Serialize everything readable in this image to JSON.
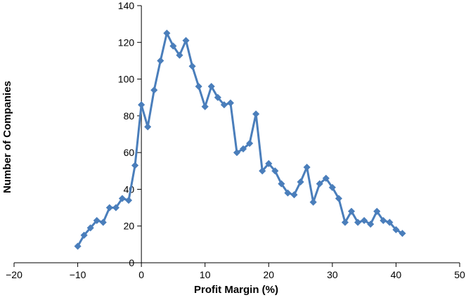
{
  "chart_data": {
    "type": "line",
    "title": "",
    "xlabel": "Profit Margin (%)",
    "ylabel": "Number of Companies",
    "xlim": [
      -20,
      50
    ],
    "ylim": [
      0,
      140
    ],
    "x_ticks": [
      -20,
      -10,
      0,
      10,
      20,
      30,
      40,
      50
    ],
    "y_ticks": [
      0,
      20,
      40,
      60,
      80,
      100,
      120,
      140
    ],
    "x_tick_labels": [
      "−20",
      "−10",
      "0",
      "10",
      "20",
      "30",
      "40",
      "50"
    ],
    "y_tick_labels": [
      "0",
      "20",
      "40",
      "60",
      "80",
      "100",
      "120",
      "140"
    ],
    "grid": false,
    "legend": "none",
    "marker": "diamond",
    "colors": {
      "series": "#4A7EBB",
      "axis": "#000000",
      "text": "#000000",
      "background": "#FFFFFF"
    },
    "series": [
      {
        "x": [
          -10,
          -9,
          -8,
          -7,
          -6,
          -5,
          -4,
          -3,
          -2,
          -1,
          0,
          1,
          2,
          3,
          4,
          5,
          6,
          7,
          8,
          9,
          10,
          11,
          12,
          13,
          14,
          15,
          16,
          17,
          18,
          19,
          20,
          21,
          22,
          23,
          24,
          25,
          26,
          27,
          28,
          29,
          30,
          31,
          32,
          33,
          34,
          35,
          36,
          37,
          38,
          39,
          40,
          41
        ],
        "y": [
          9,
          15,
          19,
          23,
          22,
          30,
          30,
          35,
          34,
          53,
          86,
          74,
          94,
          110,
          125,
          118,
          113,
          121,
          107,
          96,
          85,
          96,
          90,
          86,
          87,
          60,
          62,
          65,
          81,
          50,
          54,
          50,
          43,
          38,
          37,
          44,
          52,
          33,
          43,
          46,
          41,
          35,
          22,
          28,
          22,
          23,
          21,
          28,
          23,
          22,
          18,
          16
        ]
      }
    ]
  }
}
